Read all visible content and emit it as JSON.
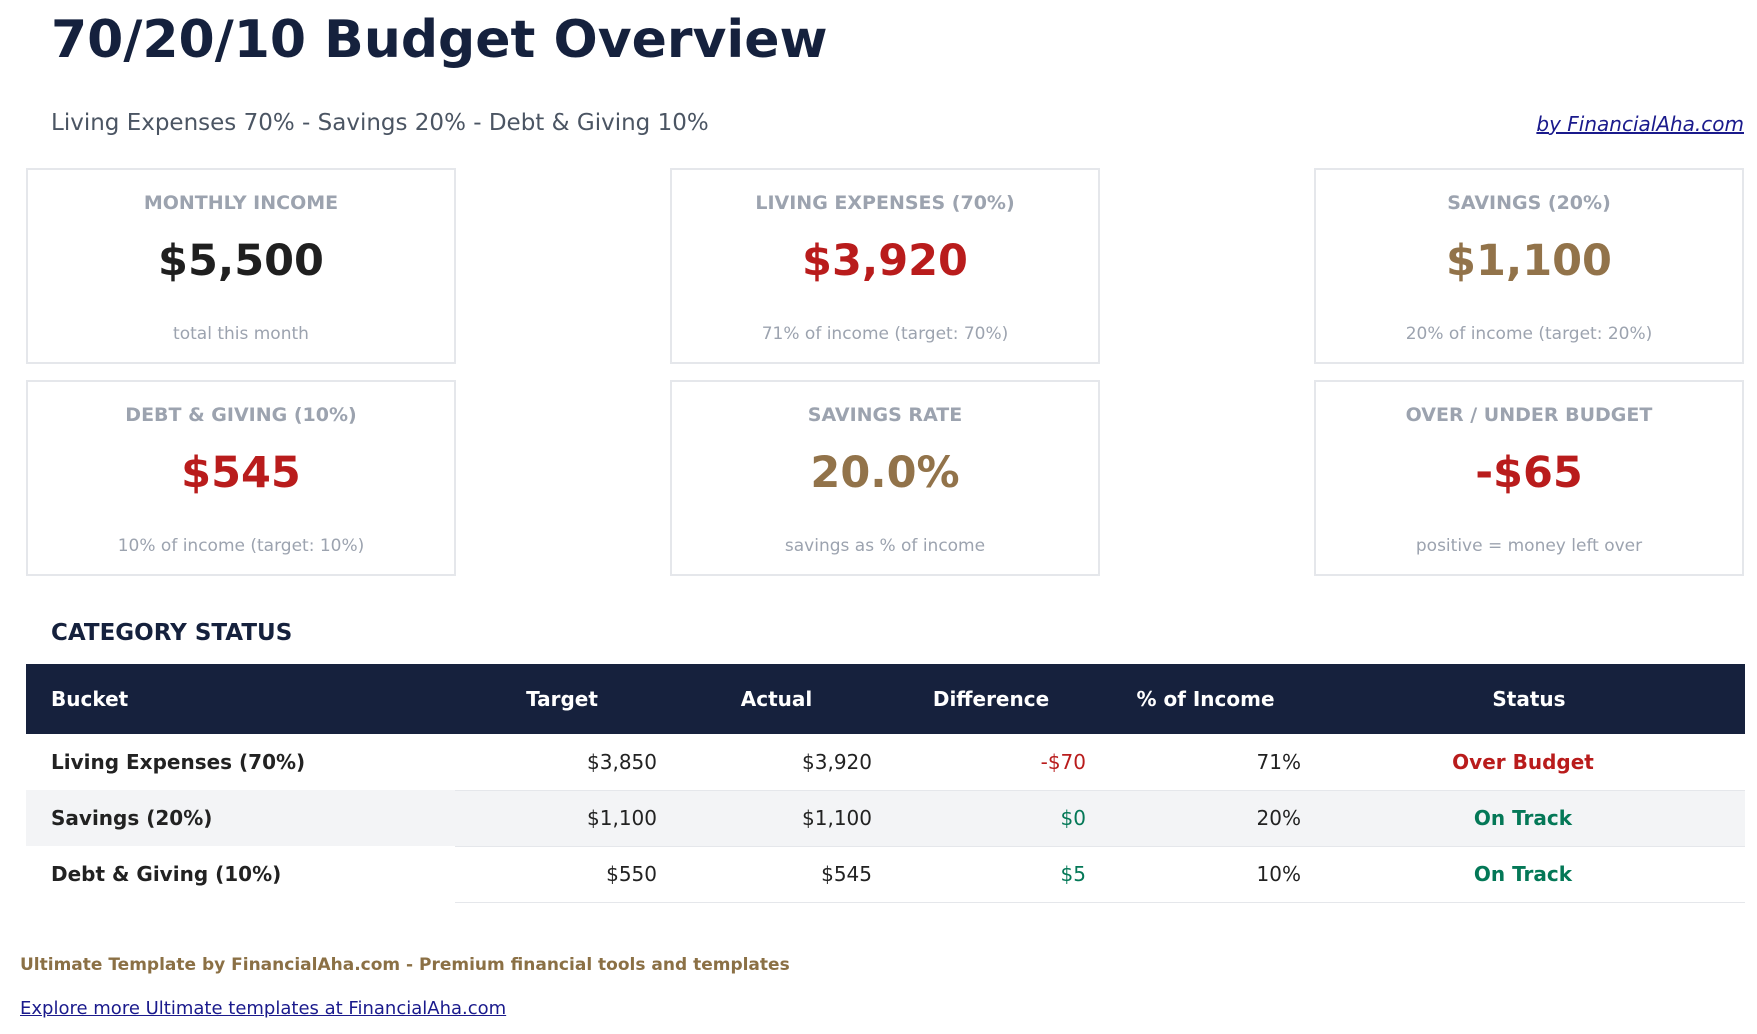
{
  "header": {
    "title": "70/20/10 Budget Overview",
    "subtitle": "Living Expenses 70% - Savings 20% - Debt & Giving 10%",
    "byline": "by FinancialAha.com"
  },
  "colors": {
    "navy": "#16213d",
    "red": "#b91c1c",
    "gold": "#92734a",
    "green": "#047857",
    "dark": "#1f1f1f"
  },
  "cards": [
    {
      "label": "MONTHLY INCOME",
      "value": "$5,500",
      "sub": "total this month",
      "color": "#1f1f1f"
    },
    {
      "label": "LIVING EXPENSES (70%)",
      "value": "$3,920",
      "sub": "71% of income (target: 70%)",
      "color": "#b91c1c"
    },
    {
      "label": "SAVINGS (20%)",
      "value": "$1,100",
      "sub": "20% of income (target: 20%)",
      "color": "#92734a"
    },
    {
      "label": "DEBT & GIVING (10%)",
      "value": "$545",
      "sub": "10% of income (target: 10%)",
      "color": "#b91c1c"
    },
    {
      "label": "SAVINGS RATE",
      "value": "20.0%",
      "sub": "savings as % of income",
      "color": "#92734a"
    },
    {
      "label": "OVER / UNDER BUDGET",
      "value": "-$65",
      "sub": "positive = money left over",
      "color": "#b91c1c"
    }
  ],
  "category_status": {
    "title": "CATEGORY STATUS",
    "columns": [
      "Bucket",
      "Target",
      "Actual",
      "Difference",
      "% of Income",
      "Status"
    ],
    "rows": [
      {
        "bucket": "Living Expenses (70%)",
        "target": "$3,850",
        "actual": "$3,920",
        "difference": "-$70",
        "pct": "71%",
        "status": "Over Budget",
        "diff_color": "#b91c1c",
        "status_color": "#b91c1c"
      },
      {
        "bucket": "Savings (20%)",
        "target": "$1,100",
        "actual": "$1,100",
        "difference": "$0",
        "pct": "20%",
        "status": "On Track",
        "diff_color": "#047857",
        "status_color": "#047857"
      },
      {
        "bucket": "Debt & Giving (10%)",
        "target": "$550",
        "actual": "$545",
        "difference": "$5",
        "pct": "10%",
        "status": "On Track",
        "diff_color": "#047857",
        "status_color": "#047857"
      }
    ]
  },
  "footer": {
    "text": "Ultimate Template by FinancialAha.com - Premium financial tools and templates",
    "link": "Explore more Ultimate templates at FinancialAha.com"
  }
}
